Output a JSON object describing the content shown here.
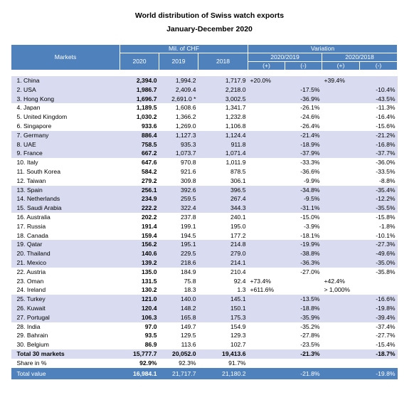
{
  "header": {
    "title": "World distribution of Swiss watch exports",
    "subtitle": "January-December 2020"
  },
  "table": {
    "columns": {
      "markets": "Markets",
      "mil": "Mil. of CHF",
      "years": [
        "2020",
        "2019",
        "2018"
      ],
      "variation": "Variation",
      "periods": [
        "2020/2019",
        "2020/2018"
      ],
      "signs": [
        "(+)",
        "(-)",
        "(+)",
        "(-)"
      ]
    },
    "rows": [
      [
        "1. China",
        "2,394.0",
        "1,994.2",
        "1,717.9",
        "+20.0%",
        null,
        "+39.4%",
        null
      ],
      [
        "2. USA",
        "1,986.7",
        "2,409.4",
        "2,218.0",
        null,
        "-17.5%",
        null,
        "-10.4%"
      ],
      [
        "3. Hong Kong",
        "1,696.7",
        "2,691.0 *",
        "3,002.5",
        null,
        "-36.9%",
        null,
        "-43.5%"
      ],
      [
        "4. Japan",
        "1,189.5",
        "1,608.6",
        "1,341.7",
        null,
        "-26.1%",
        null,
        "-11.3%"
      ],
      [
        "5. United Kingdom",
        "1,030.2",
        "1,366.2",
        "1,232.8",
        null,
        "-24.6%",
        null,
        "-16.4%"
      ],
      [
        "6. Singapore",
        "933.6",
        "1,269.0",
        "1,106.8",
        null,
        "-26.4%",
        null,
        "-15.6%"
      ],
      [
        "7. Germany",
        "886.4",
        "1,127.3",
        "1,124.4",
        null,
        "-21.4%",
        null,
        "-21.2%"
      ],
      [
        "8. UAE",
        "758.5",
        "935.3",
        "911.8",
        null,
        "-18.9%",
        null,
        "-16.8%"
      ],
      [
        "9. France",
        "667.2",
        "1,073.7",
        "1,071.4",
        null,
        "-37.9%",
        null,
        "-37.7%"
      ],
      [
        "10. Italy",
        "647.6",
        "970.8",
        "1,011.9",
        null,
        "-33.3%",
        null,
        "-36.0%"
      ],
      [
        "11. South Korea",
        "584.2",
        "921.6",
        "878.5",
        null,
        "-36.6%",
        null,
        "-33.5%"
      ],
      [
        "12. Taiwan",
        "279.2",
        "309.8",
        "306.1",
        null,
        "-9.9%",
        null,
        "-8.8%"
      ],
      [
        "13. Spain",
        "256.1",
        "392.6",
        "396.5",
        null,
        "-34.8%",
        null,
        "-35.4%"
      ],
      [
        "14. Netherlands",
        "234.9",
        "259.5",
        "267.4",
        null,
        "-9.5%",
        null,
        "-12.2%"
      ],
      [
        "15. Saudi Arabia",
        "222.2",
        "322.4",
        "344.3",
        null,
        "-31.1%",
        null,
        "-35.5%"
      ],
      [
        "16. Australia",
        "202.2",
        "237.8",
        "240.1",
        null,
        "-15.0%",
        null,
        "-15.8%"
      ],
      [
        "17. Russia",
        "191.4",
        "199.1",
        "195.0",
        null,
        "-3.9%",
        null,
        "-1.8%"
      ],
      [
        "18. Canada",
        "159.4",
        "194.5",
        "177.2",
        null,
        "-18.1%",
        null,
        "-10.1%"
      ],
      [
        "19. Qatar",
        "156.2",
        "195.1",
        "214.8",
        null,
        "-19.9%",
        null,
        "-27.3%"
      ],
      [
        "20. Thailand",
        "140.6",
        "229.5",
        "279.0",
        null,
        "-38.8%",
        null,
        "-49.6%"
      ],
      [
        "21. Mexico",
        "139.2",
        "218.6",
        "214.1",
        null,
        "-36.3%",
        null,
        "-35.0%"
      ],
      [
        "22. Austria",
        "135.0",
        "184.9",
        "210.4",
        null,
        "-27.0%",
        null,
        "-35.8%"
      ],
      [
        "23. Oman",
        "131.5",
        "75.8",
        "92.4",
        "+73.4%",
        null,
        "+42.4%",
        null
      ],
      [
        "24. Ireland",
        "130.2",
        "18.3",
        "1.3",
        "+611.6%",
        null,
        "> 1,000%",
        null
      ],
      [
        "25. Turkey",
        "121.0",
        "140.0",
        "145.1",
        null,
        "-13.5%",
        null,
        "-16.6%"
      ],
      [
        "26. Kuwait",
        "120.4",
        "148.2",
        "150.1",
        null,
        "-18.8%",
        null,
        "-19.8%"
      ],
      [
        "27. Portugal",
        "106.3",
        "165.8",
        "175.3",
        null,
        "-35.9%",
        null,
        "-39.4%"
      ],
      [
        "28. India",
        "97.0",
        "149.7",
        "154.9",
        null,
        "-35.2%",
        null,
        "-37.4%"
      ],
      [
        "29. Bahrain",
        "93.5",
        "129.5",
        "129.3",
        null,
        "-27.8%",
        null,
        "-27.7%"
      ],
      [
        "30. Belgium",
        "86.9",
        "113.6",
        "102.7",
        null,
        "-23.5%",
        null,
        "-15.4%"
      ]
    ],
    "summary_rows": [
      [
        "Total 30 markets",
        "15,777.7",
        "20,052.0",
        "19,413.6",
        null,
        "-21.3%",
        null,
        "-18.7%"
      ],
      [
        "Share in %",
        "92.9%",
        "92.3%",
        "91.7%",
        null,
        null,
        null,
        null
      ],
      [
        "Total value",
        "16,984.1",
        "21,717.7",
        "21,180.2",
        null,
        "-21.8%",
        null,
        "-19.8%"
      ]
    ]
  }
}
